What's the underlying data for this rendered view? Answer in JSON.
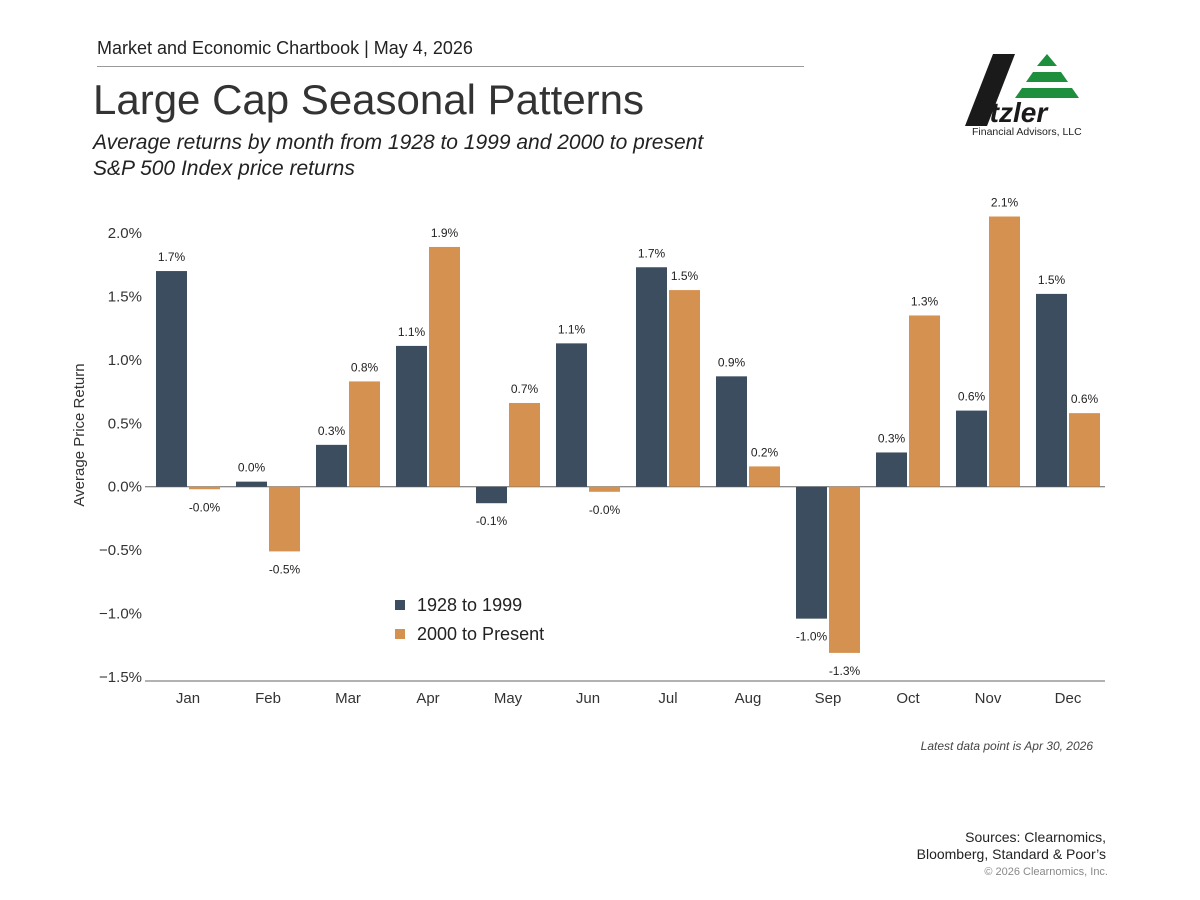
{
  "header": {
    "chartbook": "Market and Economic Chartbook | May 4, 2026",
    "title": "Large Cap Seasonal Patterns",
    "subtitle_line1": "Average returns by month from 1928 to 1999 and 2000 to present",
    "subtitle_line2": "S&P 500 Index price returns"
  },
  "logo": {
    "name": "Etzler",
    "tagline": "Financial Advisors, LLC",
    "colors": {
      "dark": "#1a1a1a",
      "green": "#1e8f3c"
    }
  },
  "chart_data": {
    "type": "bar",
    "categories": [
      "Jan",
      "Feb",
      "Mar",
      "Apr",
      "May",
      "Jun",
      "Jul",
      "Aug",
      "Sep",
      "Oct",
      "Nov",
      "Dec"
    ],
    "series": [
      {
        "name": "1928 to 1999",
        "color": "#3b4d5e",
        "values": [
          1.7,
          0.04,
          0.33,
          1.11,
          -0.13,
          1.13,
          1.73,
          0.87,
          -1.04,
          0.27,
          0.6,
          1.52
        ],
        "labels": [
          "1.7%",
          "0.0%",
          "0.3%",
          "1.1%",
          "-0.1%",
          "1.1%",
          "1.7%",
          "0.9%",
          "-1.0%",
          "0.3%",
          "0.6%",
          "1.5%"
        ]
      },
      {
        "name": "2000 to Present",
        "color": "#d4914f",
        "values": [
          -0.02,
          -0.51,
          0.83,
          1.89,
          0.66,
          -0.04,
          1.55,
          0.16,
          -1.31,
          1.35,
          2.13,
          0.58
        ],
        "labels": [
          "-0.0%",
          "-0.5%",
          "0.8%",
          "1.9%",
          "0.7%",
          "-0.0%",
          "1.5%",
          "0.2%",
          "-1.3%",
          "1.3%",
          "2.1%",
          "0.6%"
        ]
      }
    ],
    "ylabel": "Average Price Return",
    "ylim": [
      -1.5,
      2.0
    ],
    "yticks": [
      2.0,
      1.5,
      1.0,
      0.5,
      0.0,
      -0.5,
      -1.0,
      -1.5
    ],
    "ytick_labels": [
      "2.0%",
      "1.5%",
      "1.0%",
      "0.5%",
      "0.0%",
      "−0.5%",
      "−1.0%",
      "−1.5%"
    ],
    "legend_position": "lower-left inside plot",
    "grid": false
  },
  "footnote": "Latest data point is Apr 30, 2026",
  "sources": {
    "line1": "Sources: Clearnomics,",
    "line2": "Bloomberg, Standard & Poor’s"
  },
  "copyright": "© 2026 Clearnomics, Inc."
}
